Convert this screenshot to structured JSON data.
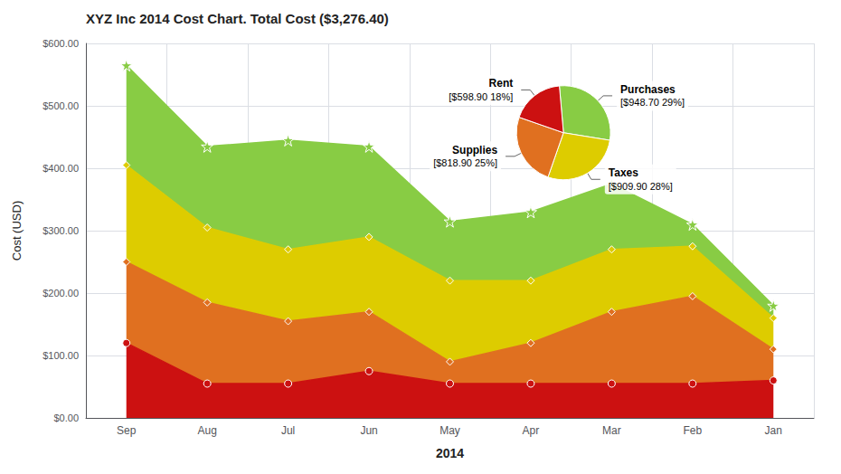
{
  "chart_data": [
    {
      "type": "area",
      "title": "XYZ Inc 2014 Cost Chart. Total Cost ($3,276.40)",
      "xlabel": "2014",
      "ylabel": "Cost (USD)",
      "categories": [
        "Sep",
        "Aug",
        "Jul",
        "Jun",
        "May",
        "Apr",
        "Mar",
        "Feb",
        "Jan"
      ],
      "series": [
        {
          "name": "Rent",
          "color": "#cc1111",
          "marker": "circle",
          "values": [
            120,
            55,
            55,
            75,
            55,
            55,
            55,
            55,
            60
          ]
        },
        {
          "name": "Supplies",
          "color": "#e07020",
          "marker": "diamond",
          "values": [
            130,
            130,
            100,
            95,
            35,
            65,
            115,
            140,
            50
          ]
        },
        {
          "name": "Taxes",
          "color": "#ddcc00",
          "marker": "diamond",
          "values": [
            155,
            120,
            115,
            120,
            130,
            100,
            100,
            80,
            50
          ]
        },
        {
          "name": "Purchases",
          "color": "#88cc44",
          "marker": "star",
          "values": [
            160,
            130,
            175,
            145,
            95,
            110,
            105,
            35,
            20
          ]
        }
      ],
      "stacked": true,
      "grid": true,
      "ylim": [
        0,
        600
      ],
      "yticks": [
        {
          "value": 0,
          "label": "$0.00"
        },
        {
          "value": 100,
          "label": "$100.00"
        },
        {
          "value": 200,
          "label": "$200.00"
        },
        {
          "value": 300,
          "label": "$300.00"
        },
        {
          "value": 400,
          "label": "$400.00"
        },
        {
          "value": 500,
          "label": "$500.00"
        },
        {
          "value": 600,
          "label": "$600.00"
        }
      ]
    },
    {
      "type": "pie",
      "categories": [
        "Purchases",
        "Taxes",
        "Supplies",
        "Rent"
      ],
      "values": [
        948.7,
        909.9,
        818.9,
        598.9
      ],
      "value_labels": [
        "[$948.70 29%]",
        "[$909.90 28%]",
        "[$818.90 25%]",
        "[$598.90 18%]"
      ],
      "colors": [
        "#88cc44",
        "#ddcc00",
        "#e07020",
        "#cc1111"
      ]
    }
  ]
}
